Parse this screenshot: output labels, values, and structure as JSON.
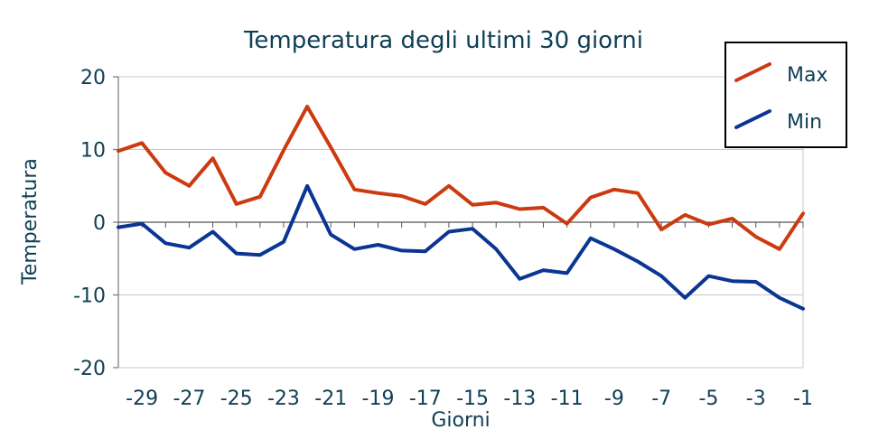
{
  "chart_data": {
    "type": "line",
    "title": "Temperatura degli ultimi 30 giorni",
    "xlabel": "Giorni",
    "ylabel": "Temperatura",
    "xlim": [
      -30,
      -1
    ],
    "ylim": [
      -20,
      20
    ],
    "yticks": [
      20,
      10,
      0,
      -10,
      -20
    ],
    "xticks": [
      -29,
      -27,
      -25,
      -23,
      -21,
      -19,
      -17,
      -15,
      -13,
      -11,
      -9,
      -7,
      -5,
      -3,
      -1
    ],
    "x": [
      -30,
      -29,
      -28,
      -27,
      -26,
      -25,
      -24,
      -23,
      -22,
      -21,
      -20,
      -19,
      -18,
      -17,
      -16,
      -15,
      -14,
      -13,
      -12,
      -11,
      -10,
      -9,
      -8,
      -7,
      -6,
      -5,
      -4,
      -3,
      -2,
      -1
    ],
    "grid": "horizontal",
    "legend_position": "top-right",
    "series": [
      {
        "name": "Max",
        "color": "#cc3a10",
        "values": [
          9.8,
          10.9,
          6.8,
          5.0,
          8.8,
          2.5,
          3.5,
          9.9,
          15.9,
          10.3,
          4.5,
          4.0,
          3.6,
          2.5,
          5.0,
          2.4,
          2.7,
          1.8,
          2.0,
          -0.2,
          3.4,
          4.5,
          4.0,
          -1.0,
          1.0,
          -0.3,
          0.5,
          -2.0,
          -3.7,
          1.2
        ]
      },
      {
        "name": "Min",
        "color": "#0b3594",
        "values": [
          -0.7,
          -0.2,
          -2.9,
          -3.5,
          -1.3,
          -4.3,
          -4.5,
          -2.7,
          5.0,
          -1.7,
          -3.7,
          -3.1,
          -3.9,
          -4.0,
          -1.3,
          -0.9,
          -3.7,
          -7.8,
          -6.6,
          -7.0,
          -2.2,
          -3.7,
          -5.4,
          -7.4,
          -10.4,
          -7.4,
          -8.1,
          -8.2,
          -10.4,
          -11.9
        ]
      }
    ]
  }
}
